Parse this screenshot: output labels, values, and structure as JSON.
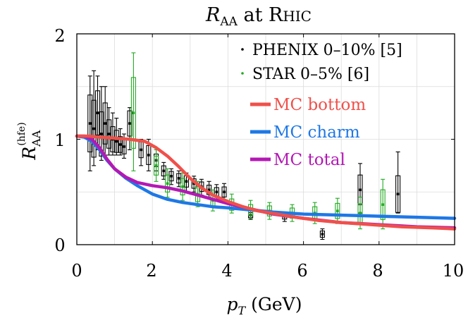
{
  "chart_data": {
    "type": "line",
    "title": "R_AA at RHIC",
    "title_parts": {
      "main": "R",
      "sub": "AA",
      "rest": " at R",
      "smallcaps": "HIC"
    },
    "xlabel": "p_T (GeV)",
    "xlabel_parts": {
      "main": "p",
      "sub": "T",
      "rest": " (GeV)"
    },
    "ylabel": "R_AA^(hfe)",
    "ylabel_parts": {
      "main": "R",
      "sub": "AA",
      "sup": "(hfe)"
    },
    "xlim": [
      0,
      10
    ],
    "ylim": [
      0,
      2
    ],
    "xticks": [
      "0",
      "2",
      "4",
      "6",
      "8",
      "10"
    ],
    "yticks": [
      "0",
      "1",
      "2"
    ],
    "grid": true,
    "legend_position": "top-right",
    "legend": [
      {
        "label": "PHENIX 0–10% [5]",
        "kind": "marker",
        "color": "#000000"
      },
      {
        "label": "STAR 0–5% [6]",
        "kind": "marker",
        "color": "#22aa22"
      },
      {
        "label": "MC bottom",
        "kind": "line",
        "color": "#f0504a"
      },
      {
        "label": "MC charm",
        "kind": "line",
        "color": "#1e78e6"
      },
      {
        "label": "MC total",
        "kind": "line",
        "color": "#b418b4"
      }
    ],
    "series": [
      {
        "name": "MC bottom",
        "color": "#f0504a",
        "style": "line",
        "x": [
          0,
          0.3,
          0.6,
          1.0,
          1.4,
          1.8,
          2.1,
          2.4,
          2.7,
          3.0,
          3.3,
          3.6,
          4.0,
          4.4,
          4.8,
          5.3,
          5.8,
          6.4,
          7.0,
          7.8,
          8.6,
          9.4,
          10.0
        ],
        "y": [
          1.03,
          1.03,
          1.02,
          1.01,
          1.0,
          0.98,
          0.92,
          0.84,
          0.74,
          0.63,
          0.54,
          0.47,
          0.41,
          0.36,
          0.32,
          0.29,
          0.26,
          0.23,
          0.21,
          0.19,
          0.17,
          0.16,
          0.15
        ]
      },
      {
        "name": "MC charm",
        "color": "#1e78e6",
        "style": "line",
        "x": [
          0,
          0.2,
          0.4,
          0.6,
          0.8,
          1.0,
          1.3,
          1.6,
          2.0,
          2.4,
          2.8,
          3.2,
          3.6,
          4.0,
          4.6,
          5.2,
          6.0,
          7.0,
          8.0,
          9.0,
          10.0
        ],
        "y": [
          1.03,
          1.02,
          0.98,
          0.9,
          0.8,
          0.72,
          0.63,
          0.56,
          0.48,
          0.43,
          0.4,
          0.38,
          0.36,
          0.35,
          0.33,
          0.31,
          0.29,
          0.28,
          0.27,
          0.26,
          0.25
        ]
      },
      {
        "name": "MC total",
        "color": "#b418b4",
        "style": "line",
        "x": [
          0,
          0.2,
          0.4,
          0.6,
          0.8,
          1.0,
          1.3,
          1.6,
          2.0,
          2.4,
          2.8,
          3.2,
          3.6,
          4.0,
          4.6,
          5.2,
          6.0,
          7.0,
          8.0,
          9.0,
          10.0
        ],
        "y": [
          1.03,
          1.03,
          1.0,
          0.92,
          0.81,
          0.72,
          0.64,
          0.59,
          0.56,
          0.54,
          0.51,
          0.47,
          0.43,
          0.39,
          0.34,
          0.29,
          0.25,
          0.21,
          0.19,
          0.17,
          0.16
        ]
      },
      {
        "name": "PHENIX 0–10% [5]",
        "color": "#000000",
        "style": "points",
        "points": [
          {
            "x": 0.35,
            "y": 1.15,
            "lo": 0.7,
            "hi": 1.6
          },
          {
            "x": 0.45,
            "y": 1.1,
            "lo": 0.75,
            "hi": 1.65
          },
          {
            "x": 0.55,
            "y": 1.25,
            "lo": 0.9,
            "hi": 1.6
          },
          {
            "x": 0.65,
            "y": 1.05,
            "lo": 0.8,
            "hi": 1.5
          },
          {
            "x": 0.75,
            "y": 1.15,
            "lo": 0.85,
            "hi": 1.5
          },
          {
            "x": 0.85,
            "y": 1.05,
            "lo": 0.85,
            "hi": 1.3
          },
          {
            "x": 0.95,
            "y": 1.0,
            "lo": 0.85,
            "hi": 1.25
          },
          {
            "x": 1.05,
            "y": 0.98,
            "lo": 0.85,
            "hi": 1.2
          },
          {
            "x": 1.15,
            "y": 0.95,
            "lo": 0.85,
            "hi": 1.1
          },
          {
            "x": 1.25,
            "y": 0.93,
            "lo": 0.82,
            "hi": 1.05
          },
          {
            "x": 1.4,
            "y": 1.15,
            "lo": 0.9,
            "hi": 1.3
          },
          {
            "x": 1.7,
            "y": 0.9,
            "lo": 0.75,
            "hi": 1.0
          },
          {
            "x": 1.9,
            "y": 0.85,
            "lo": 0.7,
            "hi": 1.0
          },
          {
            "x": 2.1,
            "y": 0.8,
            "lo": 0.7,
            "hi": 0.9
          },
          {
            "x": 2.3,
            "y": 0.7,
            "lo": 0.62,
            "hi": 0.78
          },
          {
            "x": 2.5,
            "y": 0.65,
            "lo": 0.57,
            "hi": 0.72
          },
          {
            "x": 2.7,
            "y": 0.63,
            "lo": 0.55,
            "hi": 0.7
          },
          {
            "x": 2.9,
            "y": 0.6,
            "lo": 0.5,
            "hi": 0.68
          },
          {
            "x": 3.1,
            "y": 0.58,
            "lo": 0.5,
            "hi": 0.65
          },
          {
            "x": 3.3,
            "y": 0.55,
            "lo": 0.47,
            "hi": 0.62
          },
          {
            "x": 3.5,
            "y": 0.52,
            "lo": 0.45,
            "hi": 0.6
          },
          {
            "x": 3.7,
            "y": 0.5,
            "lo": 0.43,
            "hi": 0.57
          },
          {
            "x": 3.9,
            "y": 0.5,
            "lo": 0.42,
            "hi": 0.58
          },
          {
            "x": 4.6,
            "y": 0.28,
            "lo": 0.24,
            "hi": 0.32
          },
          {
            "x": 5.5,
            "y": 0.27,
            "lo": 0.22,
            "hi": 0.31
          },
          {
            "x": 6.5,
            "y": 0.1,
            "lo": 0.05,
            "hi": 0.15
          },
          {
            "x": 7.5,
            "y": 0.52,
            "lo": 0.3,
            "hi": 0.77
          },
          {
            "x": 8.5,
            "y": 0.48,
            "lo": 0.3,
            "hi": 0.88
          }
        ]
      },
      {
        "name": "STAR 0–5% [6]",
        "color": "#22aa22",
        "style": "points",
        "points": [
          {
            "x": 1.5,
            "y": 1.25,
            "lo": 0.7,
            "hi": 1.82
          },
          {
            "x": 2.1,
            "y": 0.75,
            "lo": 0.6,
            "hi": 0.9
          },
          {
            "x": 2.4,
            "y": 0.58,
            "lo": 0.45,
            "hi": 0.72
          },
          {
            "x": 2.8,
            "y": 0.55,
            "lo": 0.42,
            "hi": 0.68
          },
          {
            "x": 3.2,
            "y": 0.48,
            "lo": 0.36,
            "hi": 0.6
          },
          {
            "x": 3.6,
            "y": 0.42,
            "lo": 0.32,
            "hi": 0.52
          },
          {
            "x": 4.1,
            "y": 0.38,
            "lo": 0.3,
            "hi": 0.48
          },
          {
            "x": 4.6,
            "y": 0.33,
            "lo": 0.25,
            "hi": 0.42
          },
          {
            "x": 5.1,
            "y": 0.32,
            "lo": 0.24,
            "hi": 0.4
          },
          {
            "x": 5.7,
            "y": 0.3,
            "lo": 0.22,
            "hi": 0.38
          },
          {
            "x": 6.3,
            "y": 0.3,
            "lo": 0.2,
            "hi": 0.4
          },
          {
            "x": 6.9,
            "y": 0.32,
            "lo": 0.2,
            "hi": 0.44
          },
          {
            "x": 7.5,
            "y": 0.3,
            "lo": 0.15,
            "hi": 0.45
          },
          {
            "x": 8.1,
            "y": 0.38,
            "lo": 0.15,
            "hi": 0.62
          }
        ]
      }
    ]
  }
}
